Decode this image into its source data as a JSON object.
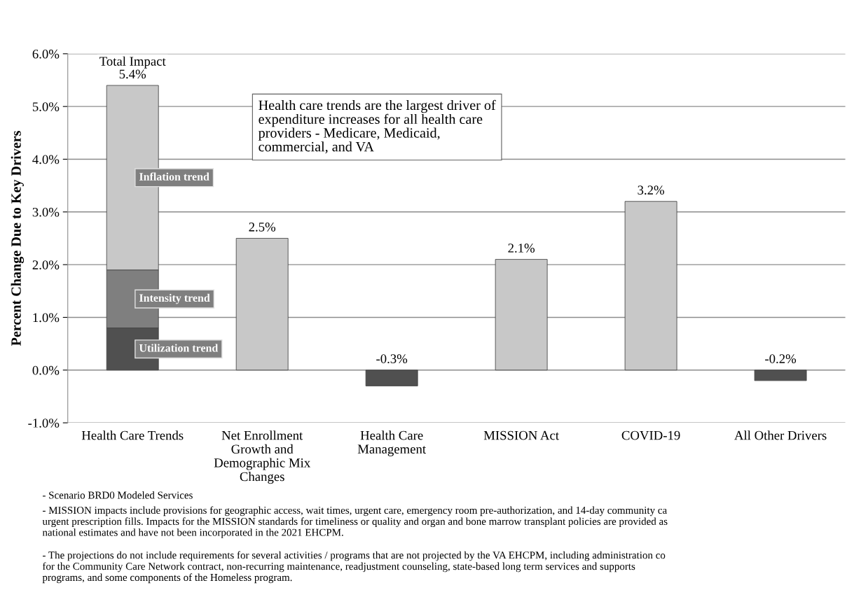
{
  "chart_data": {
    "type": "bar",
    "stacked": true,
    "ylabel": "Percent Change Due to Key Drivers",
    "categories": [
      "Health Care Trends",
      "Net Enrollment\nGrowth and\nDemographic Mix\nChanges",
      "Health Care\nManagement",
      "MISSION Act",
      "COVID-19",
      "All Other Drivers"
    ],
    "series": [
      {
        "name": "Utilization trend",
        "color": "#505050",
        "values": [
          0.8,
          null,
          null,
          null,
          null,
          null
        ]
      },
      {
        "name": "Intensity trend",
        "color": "#7f7f7f",
        "values": [
          1.1,
          null,
          null,
          null,
          null,
          null
        ]
      },
      {
        "name": "Inflation trend",
        "color": "#c8c8c8",
        "values": [
          3.5,
          null,
          null,
          null,
          null,
          null
        ]
      },
      {
        "colors": [
          "#c8c8c8",
          "#c8c8c8",
          "#505050",
          "#c8c8c8",
          "#c8c8c8",
          "#505050"
        ],
        "values": [
          null,
          2.5,
          -0.3,
          2.1,
          3.2,
          -0.2
        ],
        "value_labels": [
          null,
          "2.5%",
          "-0.3%",
          "2.1%",
          "3.2%",
          "-0.2%"
        ]
      }
    ],
    "totals": [
      "Total Impact\n5.4%",
      null,
      null,
      null,
      null,
      null
    ],
    "ylim": [
      -1.0,
      6.0
    ],
    "yticks": [
      {
        "value": -1.0,
        "label": "-1.0%"
      },
      {
        "value": 0.0,
        "label": "0.0%"
      },
      {
        "value": 1.0,
        "label": "1.0%"
      },
      {
        "value": 2.0,
        "label": "2.0%"
      },
      {
        "value": 3.0,
        "label": "3.0%"
      },
      {
        "value": 4.0,
        "label": "4.0%"
      },
      {
        "value": 5.0,
        "label": "5.0%"
      },
      {
        "value": 6.0,
        "label": "6.0%"
      }
    ],
    "grid": "y",
    "legend": false,
    "annotations": [
      "Health care trends are the largest driver of\nexpenditure increases for all health care\nproviders - Medicare, Medicaid,\ncommercial, and VA",
      "- Scenario BRD0 Modeled Services",
      "- MISSION impacts include provisions for geographic access, wait times, urgent care, emergency room pre-authorization, and 14-day community ca\nurgent prescription fills. Impacts for the MISSION standards for timeliness or quality and organ and bone marrow transplant policies are provided as\nnational estimates and have not been incorporated in the 2021 EHCPM.",
      "- The projections do not include requirements for several activities / programs that are not projected by the VA EHCPM, including administration co\nfor the Community Care Network contract, non-recurring maintenance, readjustment counseling, state-based long term services and supports\nprograms, and some components of the Homeless program."
    ]
  }
}
